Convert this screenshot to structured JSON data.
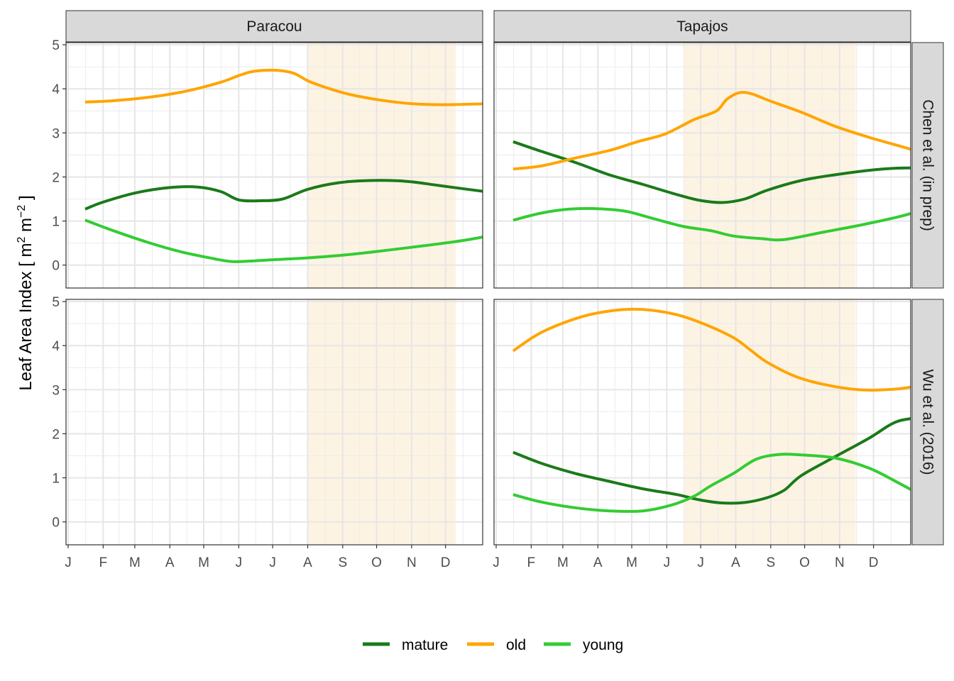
{
  "chart_data": {
    "type": "line",
    "ylabel": "Leaf Area Index [ m2 m−2 ]",
    "ylabel_parts": {
      "main": "Leaf Area Index [ m",
      "sup1": "2",
      "mid": " m",
      "sup2": "−2",
      "end": " ]"
    },
    "ylim": [
      0,
      5
    ],
    "yticks": [
      0,
      1,
      2,
      3,
      4,
      5
    ],
    "xlim": [
      0,
      365
    ],
    "xticks": [
      {
        "label": "J",
        "day": 0
      },
      {
        "label": "F",
        "day": 31
      },
      {
        "label": "M",
        "day": 59
      },
      {
        "label": "A",
        "day": 90
      },
      {
        "label": "M",
        "day": 120
      },
      {
        "label": "J",
        "day": 151
      },
      {
        "label": "J",
        "day": 181
      },
      {
        "label": "A",
        "day": 212
      },
      {
        "label": "S",
        "day": 243
      },
      {
        "label": "O",
        "day": 273
      },
      {
        "label": "N",
        "day": 304
      },
      {
        "label": "D",
        "day": 334
      }
    ],
    "col_facets": [
      "Paracou",
      "Tapajos"
    ],
    "row_facets": [
      "Chen et al. (in prep)",
      "Wu et al. (2016)"
    ],
    "legend_position": "bottom",
    "colors": {
      "mature": "#1a7a1a",
      "old": "#ffa500",
      "young": "#33cc33",
      "dry_season": "#fdf3e3"
    },
    "legend": [
      "mature",
      "old",
      "young"
    ],
    "panels": [
      {
        "site": "Paracou",
        "source": "Chen et al. (in prep)",
        "dry_season": [
          212,
          343
        ],
        "series": [
          {
            "name": "mature",
            "x": [
              15,
              31,
              60,
              90,
              115,
              135,
              151,
              170,
              190,
              212,
              240,
              270,
              300,
              330,
              380
            ],
            "y": [
              1.27,
              1.43,
              1.64,
              1.76,
              1.77,
              1.67,
              1.48,
              1.46,
              1.5,
              1.72,
              1.87,
              1.92,
              1.9,
              1.8,
              1.63
            ]
          },
          {
            "name": "old",
            "x": [
              15,
              40,
              75,
              105,
              135,
              151,
              165,
              185,
              200,
              215,
              245,
              275,
              305,
              335,
              380
            ],
            "y": [
              3.7,
              3.73,
              3.82,
              3.95,
              4.15,
              4.3,
              4.4,
              4.42,
              4.35,
              4.15,
              3.9,
              3.75,
              3.66,
              3.64,
              3.67
            ]
          },
          {
            "name": "young",
            "x": [
              15,
              40,
              70,
              100,
              130,
              145,
              160,
              180,
              210,
              245,
              280,
              315,
              350,
              380
            ],
            "y": [
              1.02,
              0.78,
              0.52,
              0.3,
              0.14,
              0.08,
              0.09,
              0.12,
              0.16,
              0.23,
              0.33,
              0.44,
              0.56,
              0.7
            ]
          }
        ]
      },
      {
        "site": "Tapajos",
        "source": "Chen et al. (in prep)",
        "dry_season": [
          166,
          318
        ],
        "series": [
          {
            "name": "mature",
            "x": [
              15,
              40,
              70,
              100,
              130,
              160,
              180,
              200,
              220,
              240,
              270,
              300,
              330,
              355,
              380
            ],
            "y": [
              2.8,
              2.58,
              2.33,
              2.05,
              1.83,
              1.6,
              1.47,
              1.42,
              1.5,
              1.7,
              1.92,
              2.05,
              2.15,
              2.2,
              2.2
            ]
          },
          {
            "name": "old",
            "x": [
              15,
              40,
              70,
              100,
              125,
              150,
              175,
              195,
              205,
              220,
              245,
              270,
              300,
              330,
              360,
              380
            ],
            "y": [
              2.18,
              2.25,
              2.43,
              2.6,
              2.8,
              2.98,
              3.3,
              3.5,
              3.78,
              3.92,
              3.7,
              3.47,
              3.15,
              2.9,
              2.68,
              2.53
            ]
          },
          {
            "name": "young",
            "x": [
              15,
              40,
              65,
              90,
              115,
              140,
              165,
              190,
              210,
              235,
              255,
              290,
              325,
              360,
              380
            ],
            "y": [
              1.02,
              1.18,
              1.27,
              1.28,
              1.22,
              1.05,
              0.88,
              0.78,
              0.66,
              0.6,
              0.58,
              0.75,
              0.92,
              1.12,
              1.28
            ]
          }
        ]
      },
      {
        "site": "Paracou",
        "source": "Wu et al. (2016)",
        "dry_season": [
          212,
          343
        ],
        "series": []
      },
      {
        "site": "Tapajos",
        "source": "Wu et al. (2016)",
        "dry_season": [
          166,
          318
        ],
        "series": [
          {
            "name": "mature",
            "x": [
              15,
              40,
              70,
              100,
              130,
              160,
              180,
              200,
              220,
              240,
              255,
              270,
              300,
              330,
              355,
              380
            ],
            "y": [
              1.58,
              1.33,
              1.1,
              0.92,
              0.75,
              0.62,
              0.5,
              0.43,
              0.44,
              0.55,
              0.72,
              1.05,
              1.48,
              1.9,
              2.28,
              2.37
            ]
          },
          {
            "name": "old",
            "x": [
              15,
              40,
              75,
              105,
              130,
              160,
              185,
              210,
              225,
              240,
              265,
              290,
              320,
              345,
              365,
              380
            ],
            "y": [
              3.88,
              4.3,
              4.65,
              4.8,
              4.82,
              4.7,
              4.48,
              4.18,
              3.9,
              3.62,
              3.3,
              3.12,
              3.0,
              3.0,
              3.05,
              3.15
            ]
          },
          {
            "name": "young",
            "x": [
              15,
              40,
              70,
              100,
              130,
              155,
              175,
              190,
              210,
              230,
              250,
              270,
              300,
              330,
              355,
              380
            ],
            "y": [
              0.62,
              0.45,
              0.32,
              0.25,
              0.25,
              0.38,
              0.58,
              0.82,
              1.1,
              1.42,
              1.53,
              1.52,
              1.45,
              1.22,
              0.9,
              0.55
            ]
          }
        ]
      }
    ]
  }
}
